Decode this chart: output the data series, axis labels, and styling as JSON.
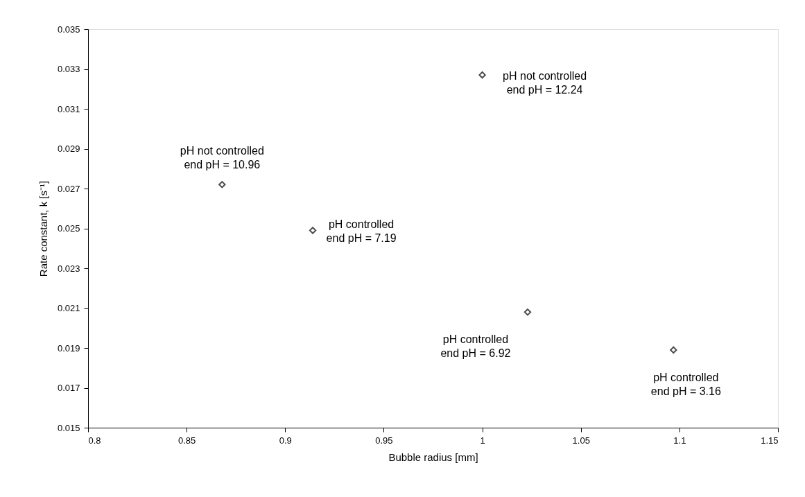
{
  "chart_data": {
    "type": "scatter",
    "xlabel": "Bubble radius [mm]",
    "ylabel": "Rate constant, k [s⁻¹]",
    "x": [
      0.868,
      0.914,
      1.0,
      1.023,
      1.097
    ],
    "series": [
      {
        "color": "#000000",
        "values": [
          0.0272,
          0.0249,
          0.0327,
          0.0208,
          0.0189
        ]
      }
    ],
    "marker": "diamond",
    "grid": false,
    "xlim": [
      0.8,
      1.15
    ],
    "xticks": [
      0.8,
      0.85,
      0.9,
      0.95,
      1,
      1.05,
      1.1,
      1.15
    ],
    "ylim": [
      0.015,
      0.035
    ],
    "yticks": [
      0.015,
      0.017,
      0.019,
      0.021,
      0.023,
      0.025,
      0.027,
      0.029,
      0.031,
      0.033,
      0.035
    ],
    "annotations": [
      {
        "text": "pH not controlled\nend pH = 10.96",
        "x": 0.868,
        "y": 0.0272
      },
      {
        "text": "pH controlled\nend pH = 7.19",
        "x": 0.914,
        "y": 0.0249
      },
      {
        "text": "pH not controlled\nend pH = 12.24",
        "x": 1.0,
        "y": 0.0327
      },
      {
        "text": "pH controlled\nend pH = 6.92",
        "x": 1.023,
        "y": 0.0208
      },
      {
        "text": "pH controlled\nend pH = 3.16",
        "x": 1.097,
        "y": 0.0189
      }
    ]
  }
}
